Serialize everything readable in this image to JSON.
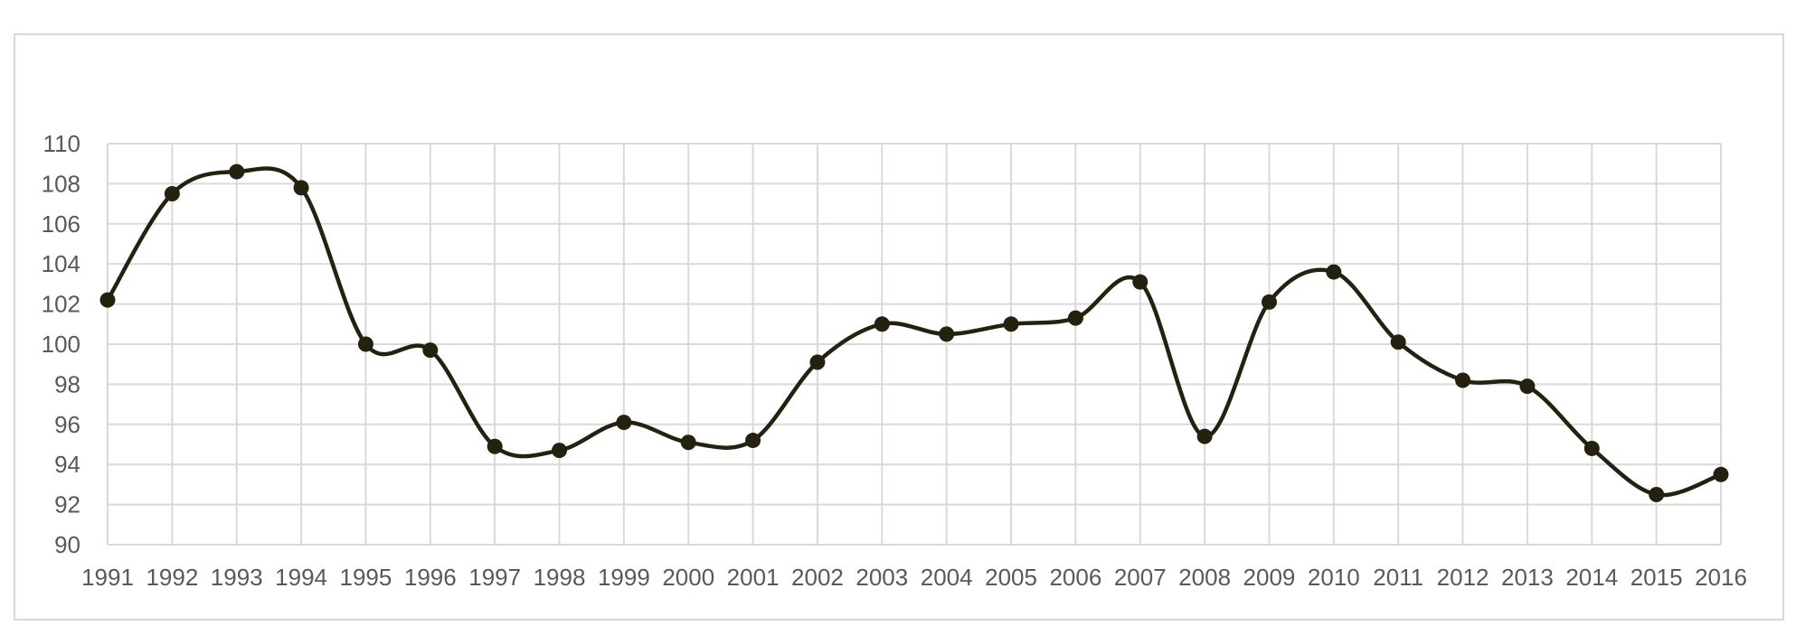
{
  "chart_data": {
    "type": "line",
    "title": "",
    "xlabel": "",
    "ylabel": "",
    "smooth": true,
    "markers": true,
    "grid": true,
    "legend": "none",
    "line_color": "#24210f",
    "grid_color": "#d9d9d9",
    "label_color": "#595959",
    "x": [
      "1991",
      "1992",
      "1993",
      "1994",
      "1995",
      "1996",
      "1997",
      "1998",
      "1999",
      "2000",
      "2001",
      "2002",
      "2003",
      "2004",
      "2005",
      "2006",
      "2007",
      "2008",
      "2009",
      "2010",
      "2011",
      "2012",
      "2013",
      "2014",
      "2015",
      "2016"
    ],
    "series": [
      {
        "values": [
          102.2,
          107.5,
          108.6,
          107.8,
          100.0,
          99.7,
          94.9,
          94.7,
          96.1,
          95.1,
          95.2,
          99.1,
          101.0,
          100.5,
          101.0,
          101.3,
          103.1,
          95.4,
          102.1,
          103.6,
          100.1,
          98.2,
          97.9,
          94.8,
          92.5,
          93.5
        ]
      }
    ],
    "ylim": [
      90,
      110
    ],
    "yticks": [
      "90",
      "92",
      "94",
      "96",
      "98",
      "100",
      "102",
      "104",
      "106",
      "108",
      "110"
    ]
  }
}
